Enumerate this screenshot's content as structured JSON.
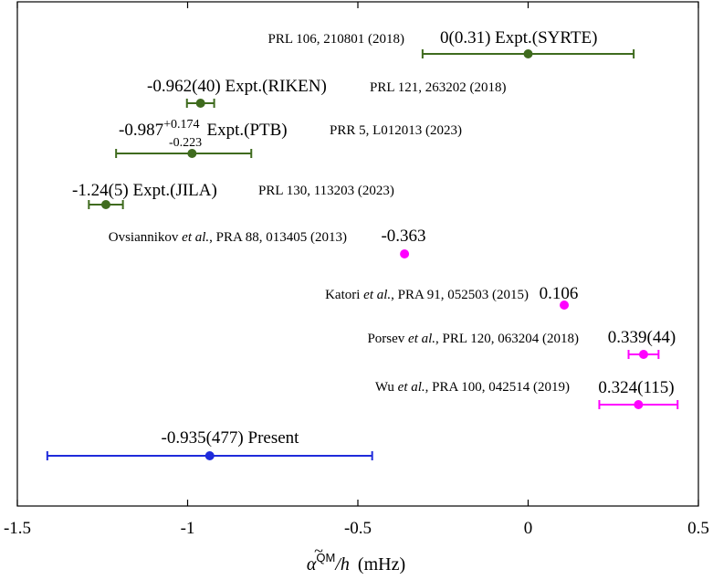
{
  "chart_data": {
    "type": "scatter",
    "subtype": "forest-plot-with-horizontal-error-bars",
    "title": "",
    "xlabel": {
      "symbol": "α",
      "superscript": "QM",
      "divisor": "/h",
      "unit": "(mHz)"
    },
    "ylabel": "",
    "xlim": [
      -1.5,
      0.5
    ],
    "xticks": [
      -1.5,
      -1,
      -0.5,
      0,
      0.5
    ],
    "xtick_labels": [
      "-1.5",
      "-1",
      "-0.5",
      "0",
      "0.5"
    ],
    "grid": false,
    "colors": {
      "experiment": "#3f6b1e",
      "theory": "#ff00ff",
      "present": "#1f2bdb"
    },
    "series": [
      {
        "name": "Expt.(SYRTE)",
        "group": "experiment",
        "x": 0.0,
        "xerr_minus": 0.31,
        "xerr_plus": 0.31,
        "value_label": "0(0.31) Expt.(SYRTE)",
        "ref": "PRL 106, 210801 (2018)"
      },
      {
        "name": "Expt.(RIKEN)",
        "group": "experiment",
        "x": -0.962,
        "xerr_minus": 0.04,
        "xerr_plus": 0.04,
        "value_label": "-0.962(40) Expt.(RIKEN)",
        "ref": "PRL 121, 263202 (2018)"
      },
      {
        "name": "Expt.(PTB)",
        "group": "experiment",
        "x": -0.987,
        "xerr_minus": 0.223,
        "xerr_plus": 0.174,
        "value_label": "-0.987",
        "err_plus_label": "+0.174",
        "err_minus_label": "-0.223",
        "suffix": "Expt.(PTB)",
        "ref": "PRR 5, L012013 (2023)"
      },
      {
        "name": "Expt.(JILA)",
        "group": "experiment",
        "x": -1.24,
        "xerr_minus": 0.05,
        "xerr_plus": 0.05,
        "value_label": "-1.24(5) Expt.(JILA)",
        "ref": "PRL 130, 113203 (2023)"
      },
      {
        "name": "Ovsiannikov",
        "group": "theory",
        "x": -0.363,
        "xerr_minus": 0,
        "xerr_plus": 0,
        "value_label": "-0.363",
        "ref_author": "Ovsiannikov",
        "ref_etal": "et al.",
        "ref": ", PRA 88, 013405 (2013)"
      },
      {
        "name": "Katori",
        "group": "theory",
        "x": 0.106,
        "xerr_minus": 0,
        "xerr_plus": 0,
        "value_label": "0.106",
        "ref_author": "Katori",
        "ref_etal": "et al.",
        "ref": ", PRA 91, 052503 (2015)"
      },
      {
        "name": "Porsev",
        "group": "theory",
        "x": 0.339,
        "xerr_minus": 0.044,
        "xerr_plus": 0.044,
        "value_label": "0.339(44)",
        "ref_author": "Porsev",
        "ref_etal": "et al.",
        "ref": ", PRL 120, 063204 (2018)"
      },
      {
        "name": "Wu",
        "group": "theory",
        "x": 0.324,
        "xerr_minus": 0.115,
        "xerr_plus": 0.115,
        "value_label": "0.324(115)",
        "ref_author": "Wu",
        "ref_etal": "et al.",
        "ref": ", PRA 100, 042514 (2019)"
      },
      {
        "name": "Present",
        "group": "present",
        "x": -0.935,
        "xerr_minus": 0.477,
        "xerr_plus": 0.477,
        "value_label": "-0.935(477)  Present",
        "ref": ""
      }
    ]
  }
}
